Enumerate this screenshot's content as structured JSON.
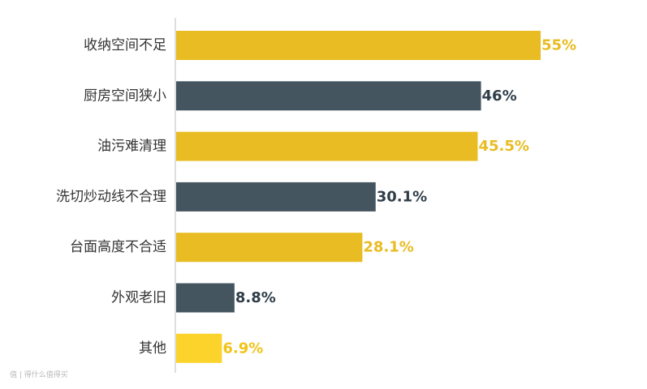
{
  "chart_data": {
    "type": "bar",
    "orientation": "horizontal",
    "categories": [
      "收纳空间不足",
      "厨房空间狭小",
      "油污难清理",
      "洗切炒动线不合理",
      "台面高度不合适",
      "外观老旧",
      "其他"
    ],
    "values": [
      55,
      46,
      45.5,
      30.1,
      28.1,
      8.8,
      6.9
    ],
    "value_labels": [
      "55%",
      "46%",
      "45.5%",
      "30.1%",
      "28.1%",
      "8.8%",
      "6.9%"
    ],
    "bar_colors": [
      "#E8BC22",
      "#455560",
      "#E8BC22",
      "#455560",
      "#E8BC22",
      "#455560",
      "#FCD32A"
    ],
    "label_colors": [
      "#E8BC22",
      "#2E3E48",
      "#E8BC22",
      "#2E3E48",
      "#E8BC22",
      "#2E3E48",
      "#F2C318"
    ],
    "xlim": [
      0,
      60
    ],
    "grid": false,
    "legend": "none",
    "title": "",
    "xlabel": "",
    "ylabel": ""
  },
  "watermark": "值 | 得什么值得买"
}
